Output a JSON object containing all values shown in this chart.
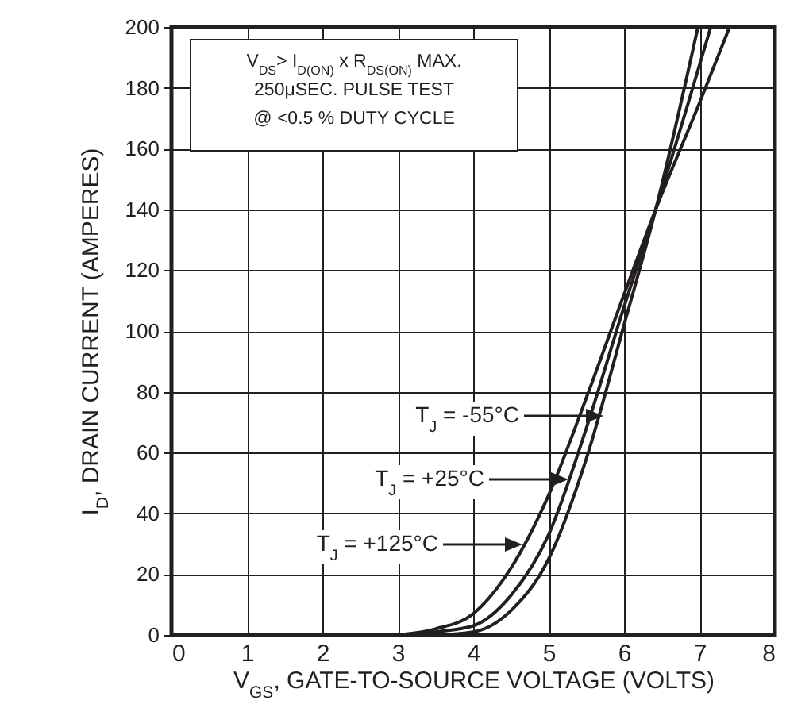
{
  "chart_data": {
    "type": "line",
    "xlabel": "V$_{GS}$, GATE-TO-SOURCE VOLTAGE (VOLTS)",
    "ylabel": "I$_{D}$, DRAIN CURRENT (AMPERES)",
    "xlim": [
      0,
      8
    ],
    "ylim": [
      0,
      200
    ],
    "xticks": [
      0,
      1,
      2,
      3,
      4,
      5,
      6,
      7,
      8
    ],
    "yticks": [
      0,
      20,
      40,
      60,
      80,
      100,
      120,
      140,
      160,
      180,
      200
    ],
    "grid": true,
    "series": [
      {
        "color": "#231f20",
        "x": [
          3.5,
          4,
          4.5,
          5,
          5.5,
          6,
          6.42,
          6.98
        ],
        "values": [
          0,
          1,
          8,
          25,
          58,
          102,
          140,
          200
        ]
      },
      {
        "color": "#231f20",
        "x": [
          3.2,
          3.5,
          4,
          4.5,
          5,
          5.5,
          6,
          6.42,
          7.15
        ],
        "values": [
          0,
          1,
          3,
          13,
          33,
          68,
          108,
          140,
          200
        ]
      },
      {
        "color": "#231f20",
        "x": [
          3,
          3.5,
          4,
          4.5,
          5,
          5.5,
          6,
          6.42,
          7,
          7.4
        ],
        "values": [
          0,
          2,
          7,
          22,
          46,
          78,
          112,
          140,
          175,
          200
        ]
      }
    ],
    "annotations": [
      "V$_{DS}$> I$_{D(ON)}$ x  R$_{DS(ON)}$ MAX.",
      "250μSEC. PULSE TEST",
      "@ <0.5 % DUTY CYCLE",
      "T$_{J}$ = -55°C",
      "T$_{J}$ = +25°C",
      "T$_{J}$ = +125°C"
    ]
  }
}
